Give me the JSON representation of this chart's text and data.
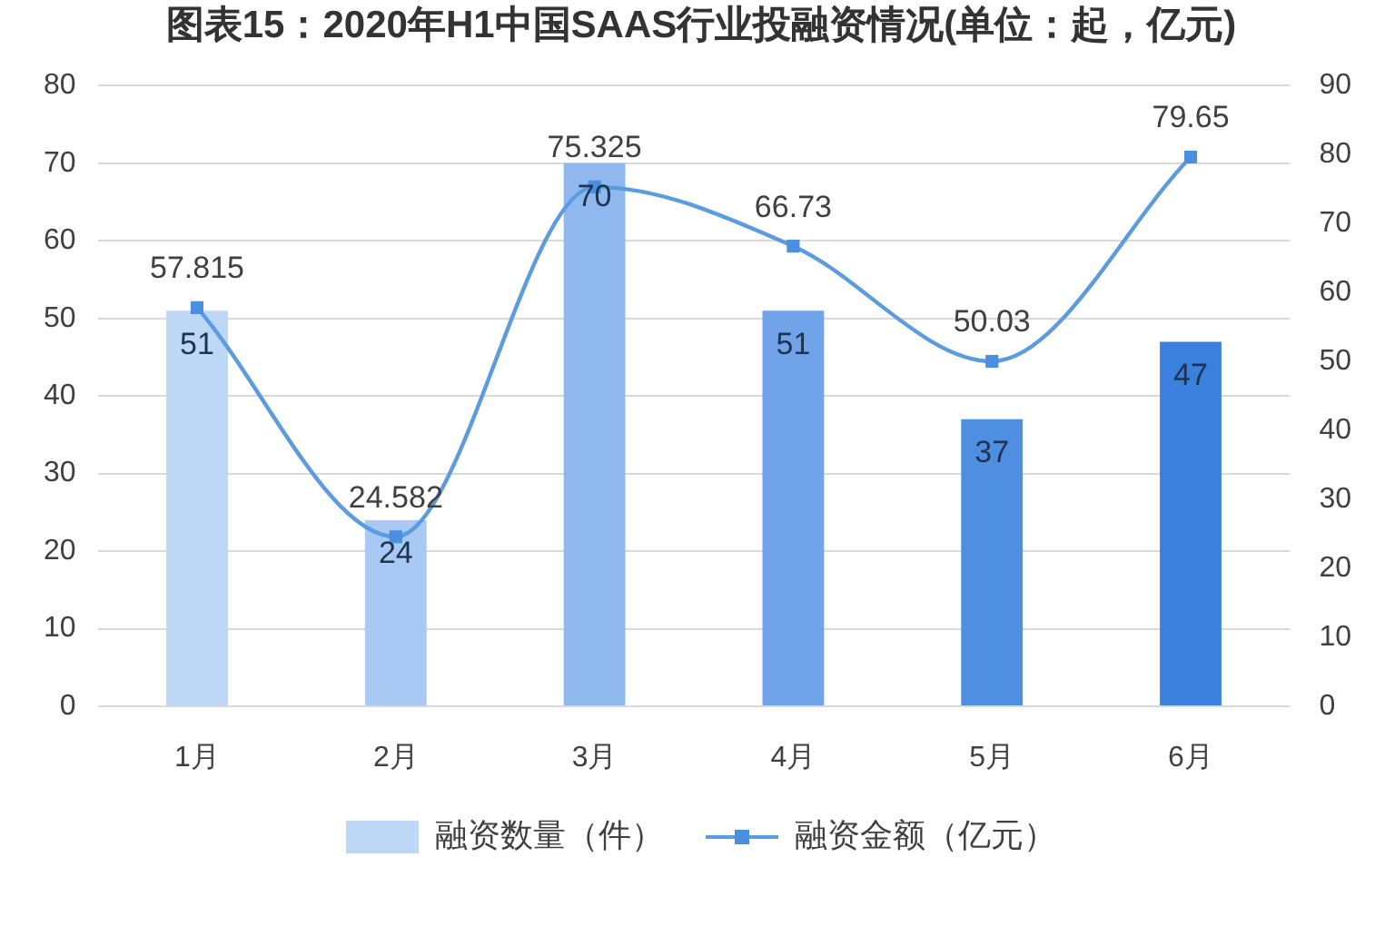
{
  "chart_data": {
    "type": "bar",
    "title": "图表15：2020年H1中国SAAS行业投融资情况(单位：起，亿元)",
    "categories": [
      "1月",
      "2月",
      "3月",
      "4月",
      "5月",
      "6月"
    ],
    "series": [
      {
        "name": "融资数量（件）",
        "colors": [
          "#bdd7f7",
          "#a8c9f3",
          "#8fb8ee",
          "#70a3e9",
          "#4f8fe2",
          "#3b80dc"
        ],
        "values": [
          51,
          24,
          70,
          51,
          37,
          47
        ]
      },
      {
        "name": "融资金额（亿元）",
        "type": "line",
        "axis": "y2",
        "color": "#5b9bdf",
        "values": [
          57.815,
          24.582,
          75.325,
          66.73,
          50.03,
          79.65
        ]
      }
    ],
    "ylim": [
      0,
      80
    ],
    "yticks": [
      0,
      10,
      20,
      30,
      40,
      50,
      60,
      70,
      80
    ],
    "y2lim": [
      0,
      90
    ],
    "y2ticks": [
      0,
      10,
      20,
      30,
      40,
      50,
      60,
      70,
      80,
      90
    ],
    "grid": "y",
    "legend": "bottom",
    "marker": "square",
    "data_labels": true
  }
}
